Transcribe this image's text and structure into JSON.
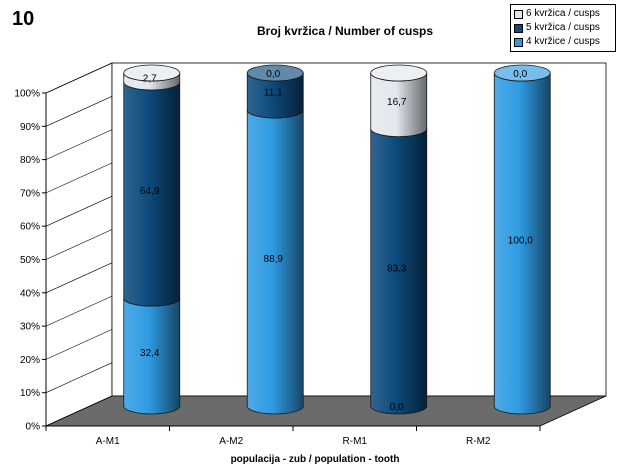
{
  "figure_number": "10",
  "chart_data": {
    "type": "bar",
    "stacked": true,
    "percent_stacked": true,
    "style": "3d-cylinder",
    "title": "Broj kvržica / Number of cusps",
    "xlabel": "populacija - zub / population - tooth",
    "ylabel": "",
    "ylim": [
      0,
      100
    ],
    "yticks": [
      "0%",
      "10%",
      "20%",
      "30%",
      "40%",
      "50%",
      "60%",
      "70%",
      "80%",
      "90%",
      "100%"
    ],
    "grid": false,
    "legend_position": "top-right",
    "categories": [
      "A-M1",
      "A-M2",
      "R-M1",
      "R-M2"
    ],
    "series": [
      {
        "name": "4 kvržice / cusps",
        "color": "#2f9be2",
        "values": [
          32.4,
          88.9,
          0.0,
          100.0
        ],
        "labels": [
          "32,4",
          "88,9",
          "0,0",
          "100,0"
        ]
      },
      {
        "name": "5 kvržica / cusps",
        "color": "#0c4a7c",
        "values": [
          64.9,
          11.1,
          83.3,
          0.0
        ],
        "labels": [
          "64,9",
          "11,1",
          "83,3",
          "0,0"
        ]
      },
      {
        "name": "6 kvržica / cusps",
        "color": "#e2e8ee",
        "values": [
          2.7,
          0.0,
          16.7,
          0.0
        ],
        "labels": [
          "2,7",
          "0,0",
          "16,7",
          ""
        ]
      }
    ],
    "legend_order": [
      2,
      1,
      0
    ],
    "floor_color": "#6b6b6b"
  }
}
